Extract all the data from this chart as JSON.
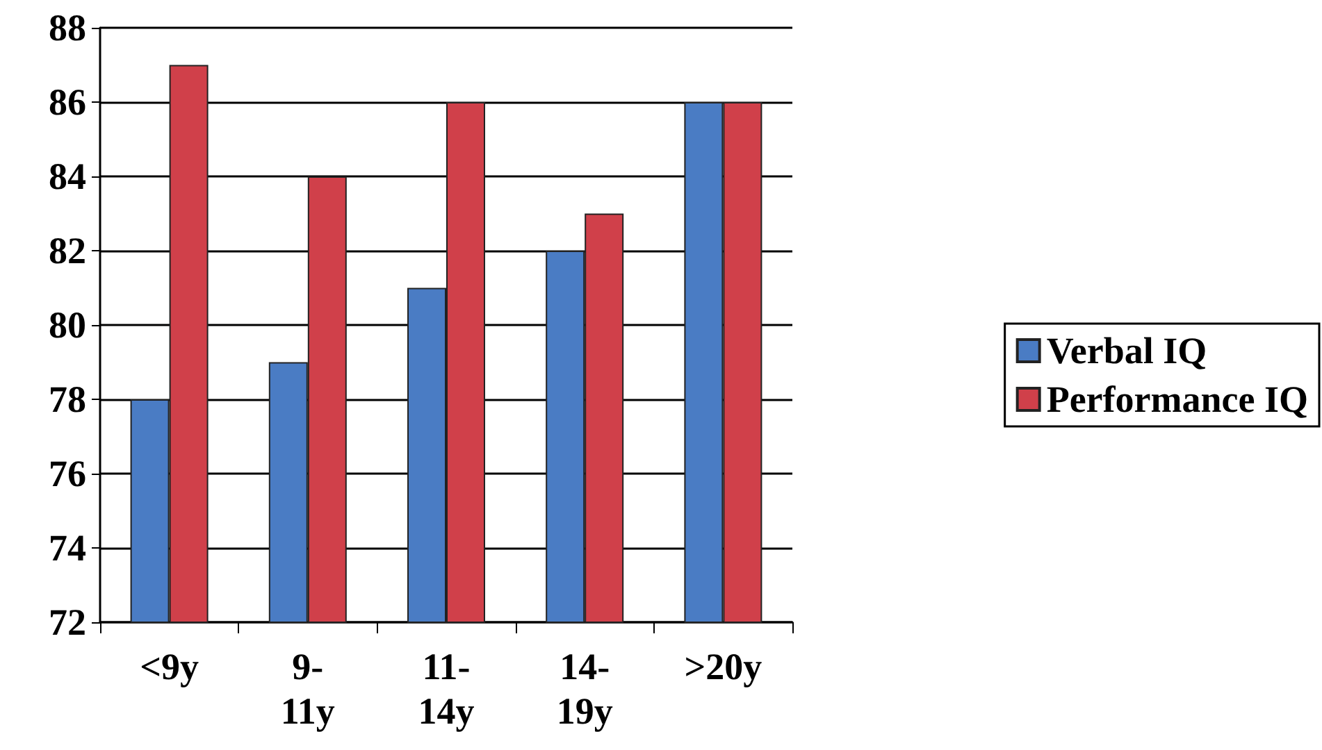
{
  "chart_data": {
    "type": "bar",
    "categories": [
      "<9y",
      "9-11y",
      "11-14y",
      "14-19y",
      ">20y"
    ],
    "series": [
      {
        "name": "Verbal IQ",
        "color": "#4a7cc4",
        "values": [
          78,
          79,
          81,
          82,
          86
        ]
      },
      {
        "name": "Performance IQ",
        "color": "#d0404a",
        "values": [
          87,
          84,
          86,
          83,
          86
        ]
      }
    ],
    "ylim": [
      72,
      88
    ],
    "yticks": [
      72,
      74,
      76,
      78,
      80,
      82,
      84,
      86,
      88
    ],
    "grid": "y",
    "legend": "right"
  }
}
